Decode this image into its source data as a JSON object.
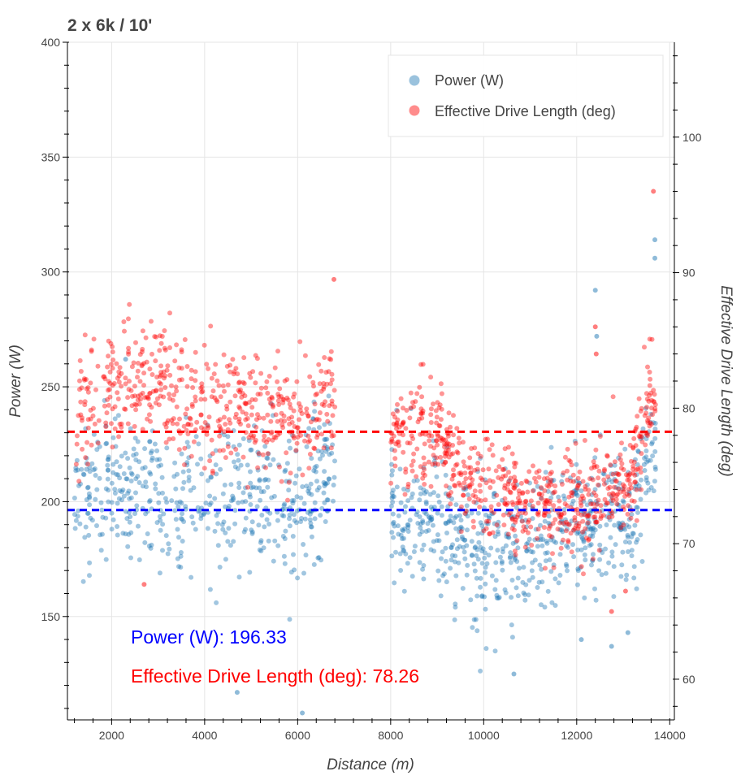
{
  "chart_data": {
    "type": "scatter",
    "title": "2 x 6k / 10'",
    "xlabel": "Distance (m)",
    "ylabel": "Power (W)",
    "y2label": "Effective Drive Length (deg)",
    "xlim": [
      1050,
      14100
    ],
    "ylim": [
      105,
      400
    ],
    "y2lim": [
      57,
      107
    ],
    "xticks": [
      2000,
      4000,
      6000,
      8000,
      10000,
      12000,
      14000
    ],
    "yticks": [
      150,
      200,
      250,
      300,
      350,
      400
    ],
    "y2ticks": [
      60,
      70,
      80,
      90,
      100
    ],
    "grid": true,
    "legend_position": "top-right",
    "colors": {
      "power": "#1f77b4",
      "drive": "#ff0000",
      "power_mean": "#0000ff",
      "drive_mean": "#ff0000"
    },
    "series": [
      {
        "name": "Power (W)",
        "axis": "left",
        "mean": 196.33,
        "segments": [
          {
            "x0": 1200,
            "x1": 6800,
            "n": 520,
            "means": [
              [
                1200,
                205
              ],
              [
                2000,
                207
              ],
              [
                3000,
                205
              ],
              [
                4000,
                200
              ],
              [
                5000,
                205
              ],
              [
                6000,
                195
              ],
              [
                6800,
                215
              ]
            ],
            "spread": 16
          },
          {
            "x0": 8000,
            "x1": 13700,
            "n": 640,
            "means": [
              [
                8000,
                195
              ],
              [
                9000,
                190
              ],
              [
                10000,
                178
              ],
              [
                11000,
                182
              ],
              [
                12000,
                190
              ],
              [
                12600,
                195
              ],
              [
                13200,
                190
              ],
              [
                13700,
                230
              ]
            ],
            "spread": 14
          }
        ],
        "extra_points": [
          [
            2300,
            262
          ],
          [
            4700,
            117
          ],
          [
            6100,
            108
          ],
          [
            10650,
            125
          ],
          [
            12100,
            140
          ],
          [
            12750,
            137
          ],
          [
            13100,
            143
          ],
          [
            13680,
            314
          ],
          [
            13680,
            306
          ],
          [
            12400,
            292
          ],
          [
            12430,
            272
          ]
        ]
      },
      {
        "name": "Effective Drive Length (deg)",
        "axis": "right",
        "mean": 78.26,
        "segments": [
          {
            "x0": 1200,
            "x1": 6800,
            "n": 520,
            "means": [
              [
                1200,
                79
              ],
              [
                2000,
                82
              ],
              [
                3000,
                82
              ],
              [
                4000,
                80
              ],
              [
                5000,
                80
              ],
              [
                6000,
                78.5
              ],
              [
                6800,
                81
              ]
            ],
            "spread": 2.2
          },
          {
            "x0": 8000,
            "x1": 13700,
            "n": 640,
            "means": [
              [
                8000,
                78
              ],
              [
                9000,
                78
              ],
              [
                9500,
                75
              ],
              [
                10000,
                74.5
              ],
              [
                11000,
                73
              ],
              [
                12000,
                73
              ],
              [
                12600,
                73.5
              ],
              [
                13200,
                75
              ],
              [
                13700,
                82
              ]
            ],
            "spread": 1.8
          }
        ],
        "extra_points": [
          [
            6780,
            89.5
          ],
          [
            13650,
            96
          ],
          [
            12400,
            86
          ],
          [
            12420,
            84
          ],
          [
            2700,
            67
          ],
          [
            12750,
            65
          ],
          [
            13050,
            66.5
          ]
        ]
      }
    ],
    "annotations": [
      {
        "label": "Power (W)",
        "value": "196.33",
        "color": "#0000ff"
      },
      {
        "label": "Effective Drive Length (deg)",
        "value": "78.26",
        "color": "#ff0000"
      }
    ]
  }
}
